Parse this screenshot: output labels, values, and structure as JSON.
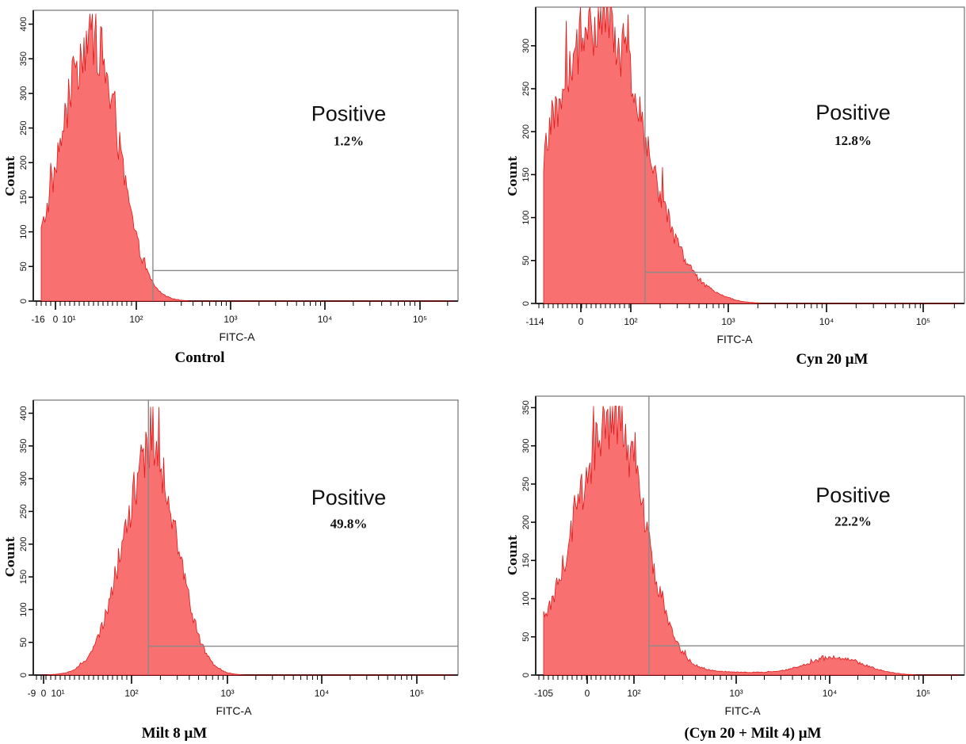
{
  "colors": {
    "histogram_fill": "#f87070",
    "histogram_line": "#e01818",
    "frame": "#000000",
    "gate": "#8a8a8a"
  },
  "chart_data": [
    {
      "type": "histogram",
      "caption": "Control",
      "xlabel": "FITC-A",
      "ylabel": "Count",
      "x_scale": "biexponential",
      "x_tick_labels": [
        "-16",
        "0",
        "10¹",
        "10²",
        "10³",
        "10⁴",
        "10⁵"
      ],
      "y_ticks": [
        0,
        50,
        100,
        150,
        200,
        250,
        300,
        350,
        400
      ],
      "ylim": [
        0,
        420
      ],
      "gate_label": "Positive",
      "gate_percent": "1.2%",
      "gate_threshold_fitc": 150,
      "distribution": {
        "peak_fitc": 45,
        "peak_count": 380,
        "spike_max": 415,
        "left_width_log": 0.33,
        "right_width_log": 0.28
      }
    },
    {
      "type": "histogram",
      "caption": "Cyn 20 μM",
      "xlabel": "FITC-A",
      "ylabel": "Count",
      "x_scale": "biexponential",
      "x_tick_labels": [
        "-114",
        "0",
        "10²",
        "10³",
        "10⁴",
        "10⁵"
      ],
      "y_ticks": [
        0,
        50,
        100,
        150,
        200,
        250,
        300
      ],
      "ylim": [
        0,
        345
      ],
      "gate_label": "Positive",
      "gate_percent": "12.8%",
      "gate_threshold_fitc": 140,
      "distribution": {
        "peak_fitc": 35,
        "peak_count": 320,
        "spike_max": 345,
        "left_width_log": 0.5,
        "right_width_log": 0.45,
        "tail_to_fitc": 1000
      }
    },
    {
      "type": "histogram",
      "caption": "Milt 8 μM",
      "xlabel": "FITC-A",
      "ylabel": "Count",
      "x_scale": "biexponential",
      "x_tick_labels": [
        "-9",
        "0",
        "10¹",
        "10²",
        "10³",
        "10⁴",
        "10⁵"
      ],
      "y_ticks": [
        0,
        50,
        100,
        150,
        200,
        250,
        300,
        350,
        400
      ],
      "ylim": [
        0,
        420
      ],
      "gate_label": "Positive",
      "gate_percent": "49.8%",
      "gate_threshold_fitc": 150,
      "distribution": {
        "peak_fitc": 165,
        "peak_count": 340,
        "spike_max": 410,
        "left_width_log": 0.3,
        "right_width_log": 0.26
      }
    },
    {
      "type": "histogram",
      "caption": "(Cyn 20 + Milt 4) μM",
      "xlabel": "FITC-A",
      "ylabel": "Count",
      "x_scale": "biexponential",
      "x_tick_labels": [
        "-105",
        "0",
        "10²",
        "10³",
        "10⁴",
        "10⁵"
      ],
      "y_ticks": [
        0,
        50,
        100,
        150,
        200,
        250,
        300,
        350
      ],
      "ylim": [
        0,
        365
      ],
      "gate_label": "Positive",
      "gate_percent": "22.2%",
      "gate_threshold_fitc": 140,
      "distribution": {
        "peak_fitc": 55,
        "peak_count": 330,
        "spike_max": 352,
        "left_width_log": 0.38,
        "right_width_log": 0.3,
        "second_peak_fitc": 12000,
        "second_peak_count": 22
      }
    }
  ]
}
